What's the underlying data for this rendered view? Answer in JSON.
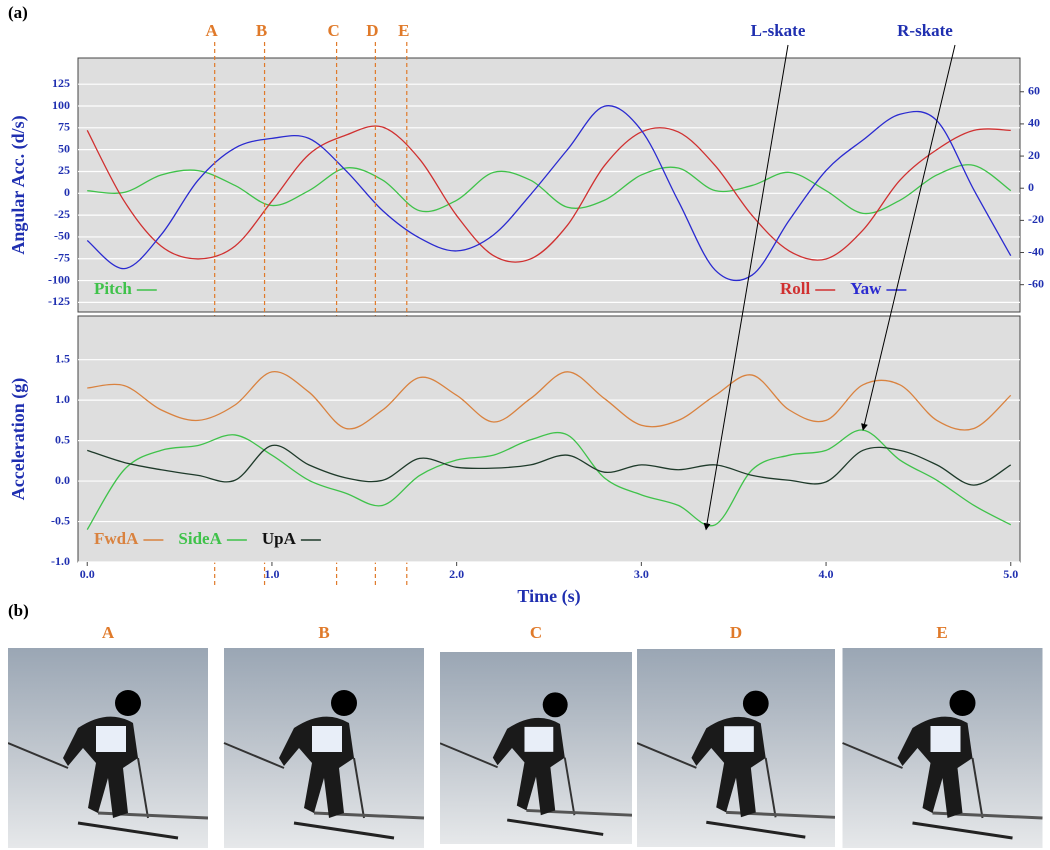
{
  "panel_label_a": "(a)",
  "panel_label_b": "(b)",
  "chart_data": [
    {
      "type": "line",
      "ylabel": "Angular Acc. (d/s)",
      "xlim": [
        -0.05,
        5.05
      ],
      "ylim": [
        -136,
        155
      ],
      "y2lim": [
        -77,
        81
      ],
      "yticks": [
        125,
        100,
        75,
        50,
        25,
        0,
        -25,
        -50,
        -75,
        -100,
        -125
      ],
      "y2ticks": [
        60,
        40,
        20,
        0,
        -20,
        -40,
        -60
      ],
      "grid": true,
      "x": [
        0,
        0.2,
        0.4,
        0.6,
        0.8,
        1.0,
        1.2,
        1.4,
        1.6,
        1.8,
        2.0,
        2.2,
        2.4,
        2.6,
        2.8,
        3.0,
        3.2,
        3.4,
        3.6,
        3.8,
        4.0,
        4.2,
        4.4,
        4.6,
        4.8,
        5.0
      ],
      "series": [
        {
          "name": "Pitch",
          "color": "#3fc24a",
          "axis": "y",
          "values": [
            3,
            1,
            21,
            26,
            9,
            -14,
            3,
            29,
            15,
            -20,
            -8,
            24,
            15,
            -16,
            -8,
            21,
            29,
            3,
            9,
            24,
            3,
            -23,
            -8,
            21,
            32,
            3
          ]
        },
        {
          "name": "Roll",
          "color": "#d03030",
          "axis": "y2",
          "values": [
            36,
            -8,
            -36,
            -44,
            -36,
            -8,
            21,
            33,
            38,
            18,
            -17,
            -42,
            -44,
            -23,
            14,
            35,
            35,
            14,
            -17,
            -39,
            -44,
            -26,
            5,
            24,
            36,
            36
          ]
        },
        {
          "name": "Yaw",
          "color": "#2a2ad0",
          "axis": "y2",
          "values": [
            -32.5,
            -50,
            -29,
            5,
            25,
            31,
            31,
            11,
            -14,
            -31,
            -39,
            -29,
            -4,
            24,
            51,
            36,
            -8,
            -51,
            -54,
            -20,
            11,
            30,
            46,
            42,
            -1,
            -42
          ]
        }
      ],
      "events": [
        {
          "x": 0.69,
          "label": "A"
        },
        {
          "x": 0.96,
          "label": "B"
        },
        {
          "x": 1.35,
          "label": "C"
        },
        {
          "x": 1.56,
          "label": "D"
        },
        {
          "x": 1.73,
          "label": "E"
        }
      ]
    },
    {
      "type": "line",
      "xlabel": "Time (s)",
      "ylabel": "Acceleration (g)",
      "xlim": [
        -0.05,
        5.05
      ],
      "ylim": [
        -1.0,
        2.04
      ],
      "xticks": [
        {
          "value": 0,
          "label": "0.0"
        },
        {
          "value": 1,
          "label": "1.0"
        },
        {
          "value": 2,
          "label": "2.0"
        },
        {
          "value": 3,
          "label": "3.0"
        },
        {
          "value": 4,
          "label": "4.0"
        },
        {
          "value": 5,
          "label": "5.0"
        }
      ],
      "yticks": [
        {
          "value": 1.5,
          "label": "1.5"
        },
        {
          "value": 1,
          "label": "1.0"
        },
        {
          "value": 0.5,
          "label": "0.5"
        },
        {
          "value": 0,
          "label": "0.0"
        },
        {
          "value": -0.5,
          "label": "-0.5"
        },
        {
          "value": -1,
          "label": "-1.0"
        }
      ],
      "grid": true,
      "legend_loc": "lower left",
      "x": [
        0,
        0.2,
        0.4,
        0.6,
        0.8,
        1.0,
        1.2,
        1.4,
        1.6,
        1.8,
        2.0,
        2.2,
        2.4,
        2.6,
        2.8,
        3.0,
        3.2,
        3.4,
        3.6,
        3.8,
        4.0,
        4.2,
        4.4,
        4.6,
        4.8,
        5.0
      ],
      "series": [
        {
          "name": "FwdA",
          "color": "#d9823f",
          "values": [
            1.15,
            1.18,
            0.88,
            0.75,
            0.94,
            1.35,
            1.1,
            0.65,
            0.88,
            1.28,
            1.06,
            0.73,
            1.02,
            1.35,
            1.02,
            0.69,
            0.75,
            1.06,
            1.31,
            0.88,
            0.75,
            1.19,
            1.19,
            0.75,
            0.65,
            1.06
          ]
        },
        {
          "name": "SideA",
          "color": "#3fc24a",
          "values": [
            -0.6,
            0.14,
            0.38,
            0.44,
            0.57,
            0.32,
            0.01,
            -0.15,
            -0.3,
            0.07,
            0.26,
            0.32,
            0.51,
            0.57,
            0.04,
            -0.17,
            -0.3,
            -0.54,
            0.14,
            0.32,
            0.38,
            0.63,
            0.26,
            0.01,
            -0.3,
            -0.54
          ]
        },
        {
          "name": "UpA",
          "color": "#1e3a2a",
          "values": [
            0.38,
            0.23,
            0.14,
            0.07,
            0.01,
            0.44,
            0.2,
            0.04,
            0.01,
            0.28,
            0.17,
            0.16,
            0.2,
            0.32,
            0.11,
            0.2,
            0.14,
            0.2,
            0.07,
            0.01,
            -0.01,
            0.38,
            0.38,
            0.2,
            -0.05,
            0.2
          ]
        }
      ],
      "annotations": [
        {
          "text": "L-skate",
          "x": 3.35,
          "y": -0.6
        },
        {
          "text": "R-skate",
          "x": 4.2,
          "y": 0.63
        }
      ]
    }
  ],
  "photos": [
    {
      "label": "A"
    },
    {
      "label": "B"
    },
    {
      "label": "C"
    },
    {
      "label": "D"
    },
    {
      "label": "E"
    }
  ]
}
